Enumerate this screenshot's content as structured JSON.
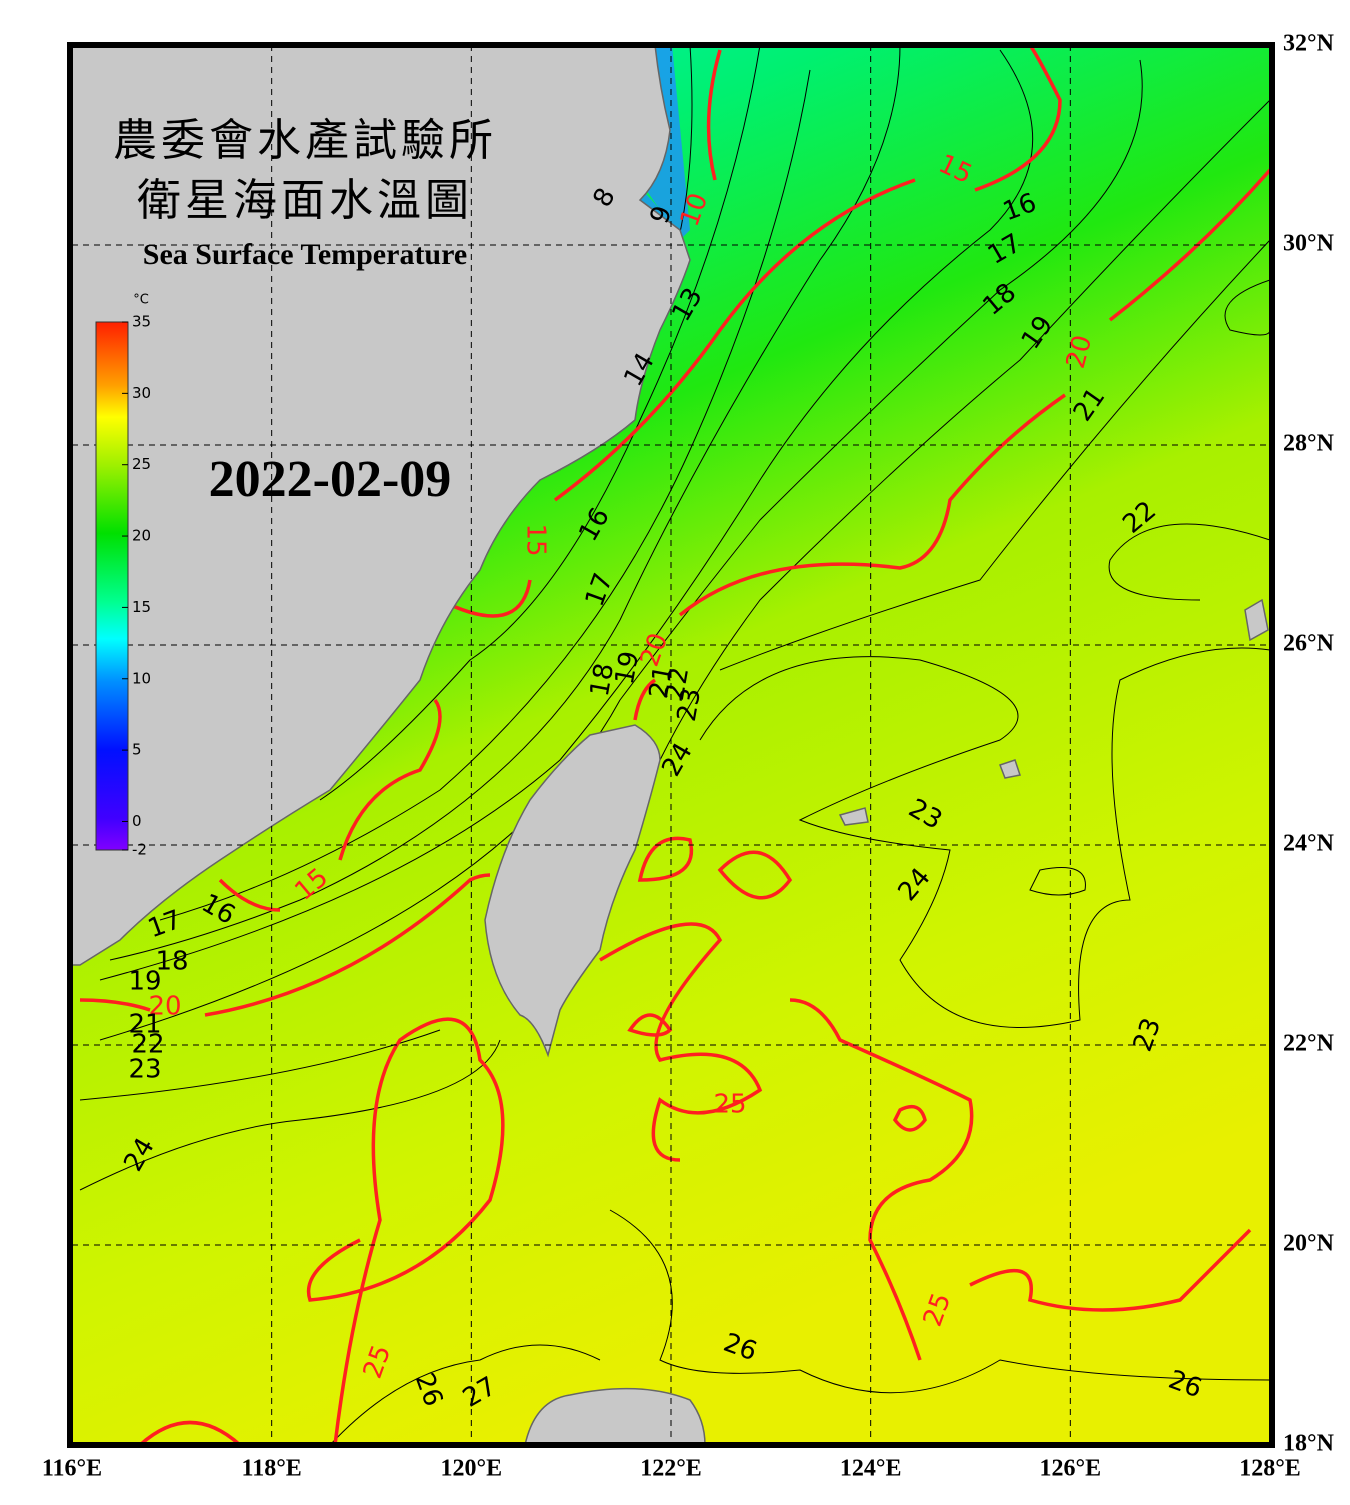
{
  "header": {
    "title_zh_1": "農委會水產試驗所",
    "title_zh_2": "衛星海面水溫圖",
    "title_en": "Sea Surface Temperature",
    "date": "2022-02-09"
  },
  "colorbar": {
    "unit": "°C",
    "range": [
      -2,
      35
    ],
    "ticks": [
      -2,
      0,
      5,
      10,
      15,
      20,
      25,
      30,
      35
    ]
  },
  "map": {
    "lon_range": [
      116,
      128
    ],
    "lat_range": [
      18,
      32
    ],
    "lon_ticks": [
      {
        "value": 116,
        "label": "116°E"
      },
      {
        "value": 118,
        "label": "118°E"
      },
      {
        "value": 120,
        "label": "120°E"
      },
      {
        "value": 122,
        "label": "122°E"
      },
      {
        "value": 124,
        "label": "124°E"
      },
      {
        "value": 126,
        "label": "126°E"
      },
      {
        "value": 128,
        "label": "128°E"
      }
    ],
    "lat_ticks": [
      {
        "value": 18,
        "label": "18°N"
      },
      {
        "value": 20,
        "label": "20°N"
      },
      {
        "value": 22,
        "label": "22°N"
      },
      {
        "value": 24,
        "label": "24°N"
      },
      {
        "value": 26,
        "label": "26°N"
      },
      {
        "value": 28,
        "label": "28°N"
      },
      {
        "value": 30,
        "label": "30°N"
      },
      {
        "value": 32,
        "label": "32°N"
      }
    ],
    "isotherm_labels": [
      8,
      9,
      10,
      13,
      14,
      15,
      16,
      17,
      18,
      19,
      20,
      21,
      15,
      16,
      17,
      18,
      19,
      20,
      21,
      22,
      23,
      24,
      22,
      23,
      24,
      23,
      16,
      15,
      17,
      18,
      19,
      20,
      21,
      22,
      23,
      24,
      25,
      25,
      25,
      26,
      26,
      26,
      27
    ]
  }
}
